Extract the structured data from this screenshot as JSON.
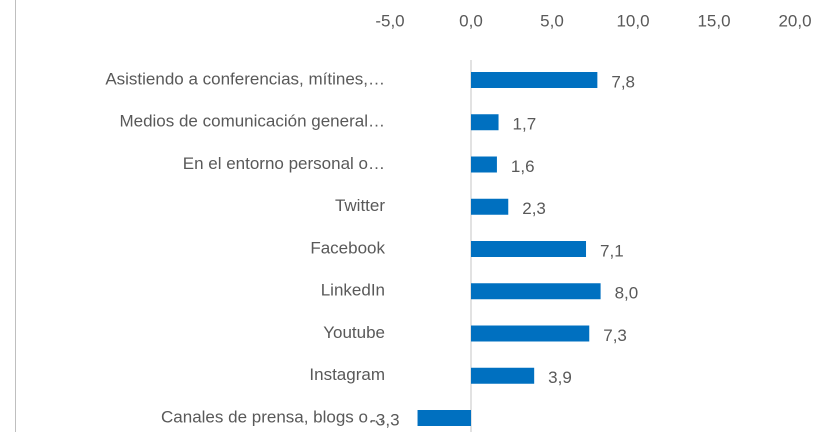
{
  "chart_data": {
    "type": "bar",
    "orientation": "horizontal",
    "categories": [
      "Asistiendo a conferencias, mítines,…",
      "Medios de comunicación general…",
      "En el entorno personal o…",
      "Twitter",
      "Facebook",
      "LinkedIn",
      "Youtube",
      "Instagram",
      "Canales de prensa, blogs o…"
    ],
    "values": [
      7.8,
      1.7,
      1.6,
      2.3,
      7.1,
      8.0,
      7.3,
      3.9,
      -3.3
    ],
    "value_labels": [
      "7,8",
      "1,7",
      "1,6",
      "2,3",
      "7,1",
      "8,0",
      "7,3",
      "3,9",
      "-3,3"
    ],
    "color": "#0070c0",
    "xlim": [
      -5,
      20
    ],
    "xticks": [
      {
        "value": -5,
        "label": "-5,0"
      },
      {
        "value": 0,
        "label": "0,0"
      },
      {
        "value": 5,
        "label": "5,0"
      },
      {
        "value": 10,
        "label": "10,0"
      },
      {
        "value": 15,
        "label": "15,0"
      },
      {
        "value": 20,
        "label": "20,0"
      }
    ]
  }
}
